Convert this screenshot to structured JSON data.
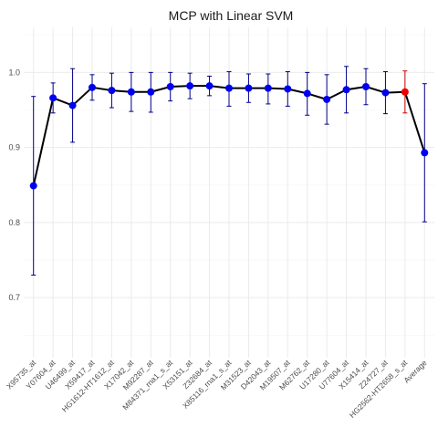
{
  "chart_data": {
    "type": "line",
    "title": "MCP with Linear SVM",
    "xlabel": "",
    "ylabel": "",
    "ylim": [
      0.62,
      1.06
    ],
    "yticks": [
      0.7,
      0.8,
      0.9,
      1.0
    ],
    "ytick_labels": [
      "0.7",
      "0.8",
      "0.9",
      "1.0"
    ],
    "grid": true,
    "categories": [
      "X95735_at",
      "Y07604_at",
      "U46499_at",
      "X59417_at",
      "HG1612-HT1612_at",
      "X17042_at",
      "M92287_at",
      "M84371_rna1_s_at",
      "X53151_at",
      "Z32684_at",
      "X85116_rna1_s_at",
      "M31523_at",
      "D42043_at",
      "M19507_at",
      "M62762_at",
      "U17280_at",
      "U77604_at",
      "X15414_at",
      "Z24727_at",
      "HG2562-HT2658_s_at",
      "Average"
    ],
    "series": [
      {
        "values": [
          0.849,
          0.966,
          0.956,
          0.98,
          0.976,
          0.974,
          0.974,
          0.981,
          0.982,
          0.982,
          0.979,
          0.979,
          0.979,
          0.978,
          0.972,
          0.964,
          0.977,
          0.981,
          0.973,
          0.974,
          0.893
        ],
        "upper": [
          0.968,
          0.986,
          1.005,
          0.997,
          0.999,
          1.0,
          1.0,
          1.0,
          0.999,
          0.995,
          1.001,
          0.998,
          0.998,
          1.001,
          1.0,
          0.997,
          1.008,
          1.005,
          1.001,
          1.002,
          0.985
        ],
        "lower": [
          0.73,
          0.946,
          0.907,
          0.963,
          0.953,
          0.948,
          0.947,
          0.962,
          0.965,
          0.969,
          0.955,
          0.96,
          0.958,
          0.955,
          0.943,
          0.931,
          0.946,
          0.957,
          0.945,
          0.946,
          0.801
        ]
      }
    ],
    "highlight_index": 19,
    "colors": {
      "line": "#000000",
      "point": "#0000ee",
      "errorbar": "#00008b",
      "highlight_point": "#ee0000",
      "highlight_errorbar": "#cd0000",
      "grid_major": "#ebebeb",
      "grid_minor": "#f5f5f5"
    }
  }
}
